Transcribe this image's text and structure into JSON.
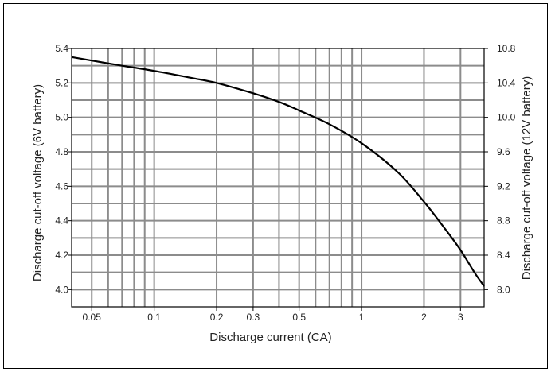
{
  "chart_data": {
    "type": "line",
    "title": "",
    "xlabel": "Discharge current (CA)",
    "ylabel": "Discharge cut-off voltage (6V battery)",
    "ylabel_right": "Discharge cut-off voltage (12V battery)",
    "x_scale": "log",
    "xlim": [
      0.04,
      3.9
    ],
    "ylim": [
      3.9,
      5.4
    ],
    "ylim_right": [
      7.8,
      10.8
    ],
    "grid": true,
    "x_grid_values": [
      0.05,
      0.06,
      0.07,
      0.08,
      0.09,
      0.1,
      0.2,
      0.3,
      0.4,
      0.5,
      0.6,
      0.7,
      0.8,
      0.9,
      1,
      2,
      3
    ],
    "x_ticks": [
      {
        "value": 0.05,
        "label": "0.05"
      },
      {
        "value": 0.1,
        "label": "0.1"
      },
      {
        "value": 0.2,
        "label": "0.2"
      },
      {
        "value": 0.3,
        "label": "0.3"
      },
      {
        "value": 0.5,
        "label": "0.5"
      },
      {
        "value": 1,
        "label": "1"
      },
      {
        "value": 2,
        "label": "2"
      },
      {
        "value": 3,
        "label": "3"
      }
    ],
    "y_ticks": [
      {
        "value": 4.0,
        "label": "4.0"
      },
      {
        "value": 4.2,
        "label": "4.2"
      },
      {
        "value": 4.4,
        "label": "4.4"
      },
      {
        "value": 4.6,
        "label": "4.6"
      },
      {
        "value": 4.8,
        "label": "4.8"
      },
      {
        "value": 5.0,
        "label": "5.0"
      },
      {
        "value": 5.2,
        "label": "5.2"
      },
      {
        "value": 5.4,
        "label": "5.4"
      }
    ],
    "y_ticks_right": [
      {
        "value": 8.0,
        "label": "8.0"
      },
      {
        "value": 8.4,
        "label": "8.4"
      },
      {
        "value": 8.8,
        "label": "8.8"
      },
      {
        "value": 9.2,
        "label": "9.2"
      },
      {
        "value": 9.6,
        "label": "9.6"
      },
      {
        "value": 10.0,
        "label": "10.0"
      },
      {
        "value": 10.4,
        "label": "10.4"
      },
      {
        "value": 10.8,
        "label": "10.8"
      }
    ],
    "series": [
      {
        "x": [
          0.04,
          0.05,
          0.07,
          0.1,
          0.15,
          0.2,
          0.3,
          0.4,
          0.5,
          0.7,
          1.0,
          1.5,
          2.0,
          2.5,
          3.0,
          3.5,
          3.9
        ],
        "y": [
          5.35,
          5.33,
          5.3,
          5.27,
          5.23,
          5.2,
          5.14,
          5.09,
          5.04,
          4.96,
          4.85,
          4.68,
          4.51,
          4.36,
          4.23,
          4.1,
          4.02
        ]
      }
    ],
    "colors": {
      "line": "#000000",
      "grid": "#8c8c8c",
      "axis": "#000000",
      "text": "#222222"
    }
  }
}
